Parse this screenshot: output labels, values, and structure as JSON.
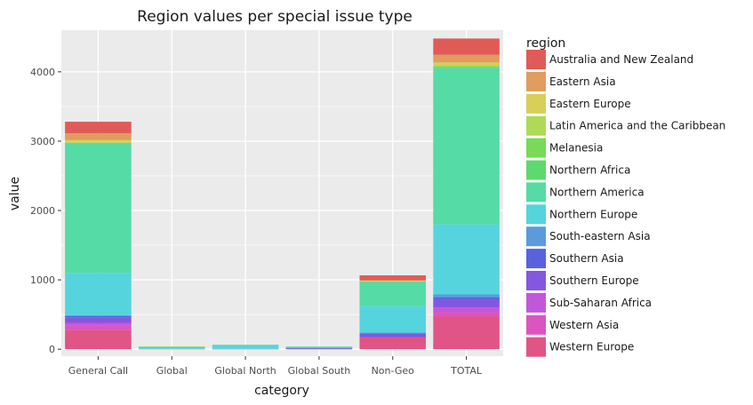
{
  "chart_data": {
    "type": "bar",
    "stacked": true,
    "title": "Region values per special issue type",
    "xlabel": "category",
    "ylabel": "value",
    "ylim": [
      -100,
      4600
    ],
    "yticks": [
      0,
      1000,
      2000,
      3000,
      4000
    ],
    "categories": [
      "General Call",
      "Global",
      "Global North",
      "Global South",
      "Non-Geo",
      "TOTAL"
    ],
    "legend_title": "region",
    "legend_position": "right",
    "grid": true,
    "series": [
      {
        "name": "Western Europe",
        "color": "#E05585",
        "values": [
          280,
          5,
          5,
          5,
          170,
          470
        ]
      },
      {
        "name": "Western Asia",
        "color": "#DB55C0",
        "values": [
          60,
          0,
          0,
          0,
          0,
          70
        ]
      },
      {
        "name": "Sub-Saharan Africa",
        "color": "#C258D9",
        "values": [
          40,
          0,
          0,
          0,
          0,
          60
        ]
      },
      {
        "name": "Southern Europe",
        "color": "#8457DF",
        "values": [
          80,
          0,
          0,
          5,
          50,
          120
        ]
      },
      {
        "name": "Southern Asia",
        "color": "#5862DE",
        "values": [
          20,
          0,
          0,
          5,
          10,
          30
        ]
      },
      {
        "name": "South-eastern Asia",
        "color": "#5B9BDB",
        "values": [
          10,
          0,
          0,
          5,
          10,
          40
        ]
      },
      {
        "name": "Northern Europe",
        "color": "#56D4DE",
        "values": [
          610,
          10,
          50,
          10,
          380,
          1010
        ]
      },
      {
        "name": "Northern America",
        "color": "#55DBA5",
        "values": [
          1870,
          20,
          10,
          10,
          350,
          2260
        ]
      },
      {
        "name": "Northern Africa",
        "color": "#5ED96E",
        "values": [
          5,
          0,
          0,
          0,
          5,
          10
        ]
      },
      {
        "name": "Melanesia",
        "color": "#77DB57",
        "values": [
          0,
          0,
          0,
          0,
          0,
          5
        ]
      },
      {
        "name": "Latin America and the Caribbean",
        "color": "#AEDA57",
        "values": [
          15,
          5,
          0,
          0,
          5,
          25
        ]
      },
      {
        "name": "Eastern Europe",
        "color": "#D7CF57",
        "values": [
          25,
          0,
          0,
          0,
          5,
          35
        ]
      },
      {
        "name": "Eastern Asia",
        "color": "#DF9D5E",
        "values": [
          100,
          0,
          0,
          0,
          10,
          110
        ]
      },
      {
        "name": "Australia and New Zealand",
        "color": "#E05B57",
        "values": [
          165,
          0,
          0,
          0,
          70,
          235
        ]
      }
    ]
  }
}
